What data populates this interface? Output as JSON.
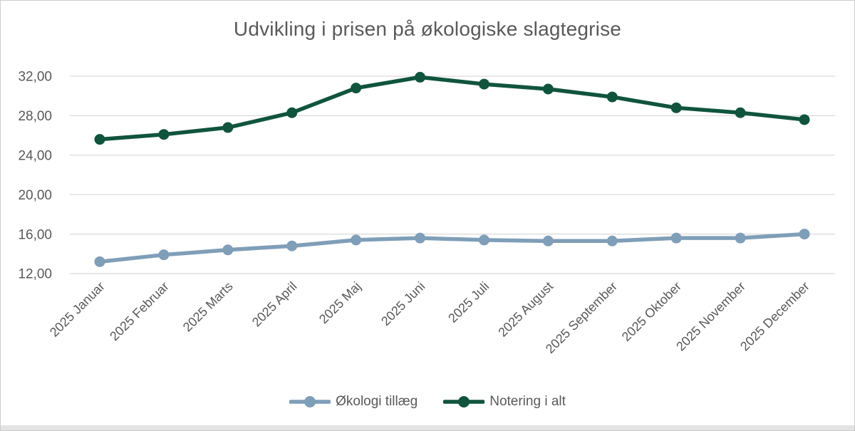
{
  "chart_data": {
    "type": "line",
    "title": "Udvikling i prisen på økologiske slagtegrise",
    "categories": [
      "2025 Januar",
      "2025 Februar",
      "2025 Marts",
      "2025 April",
      "2025 Maj",
      "2025 Juni",
      "2025 Juli",
      "2025 August",
      "2025 September",
      "2025 Oktober",
      "2025 November",
      "2025 December"
    ],
    "series": [
      {
        "name": "Økologi tillæg",
        "color": "#7F9EB8",
        "values": [
          13.2,
          13.9,
          14.4,
          14.8,
          15.4,
          15.6,
          15.4,
          15.3,
          15.3,
          15.6,
          15.6,
          16.0
        ]
      },
      {
        "name": "Notering i alt",
        "color": "#10543E",
        "values": [
          25.6,
          26.1,
          26.8,
          28.3,
          30.8,
          31.9,
          31.2,
          30.7,
          29.9,
          28.8,
          28.3,
          27.6
        ]
      }
    ],
    "y_axis": {
      "range": [
        12,
        32
      ],
      "ticks": [
        {
          "value": 32,
          "label": "32,00"
        },
        {
          "value": 28,
          "label": "28,00"
        },
        {
          "value": 24,
          "label": "24,00"
        },
        {
          "value": 20,
          "label": "20,00"
        },
        {
          "value": 16,
          "label": "16,00"
        },
        {
          "value": 12,
          "label": "12,00"
        }
      ]
    },
    "grid": true,
    "legend_position": "bottom",
    "styles": {
      "grid_color": "#D9D9D9",
      "axis_text_color": "#595959",
      "title_color": "#595959",
      "border_color": "#CDCDCD",
      "bottom_strip_color": "#E3E3E3",
      "background": "#FFFFFF"
    }
  }
}
